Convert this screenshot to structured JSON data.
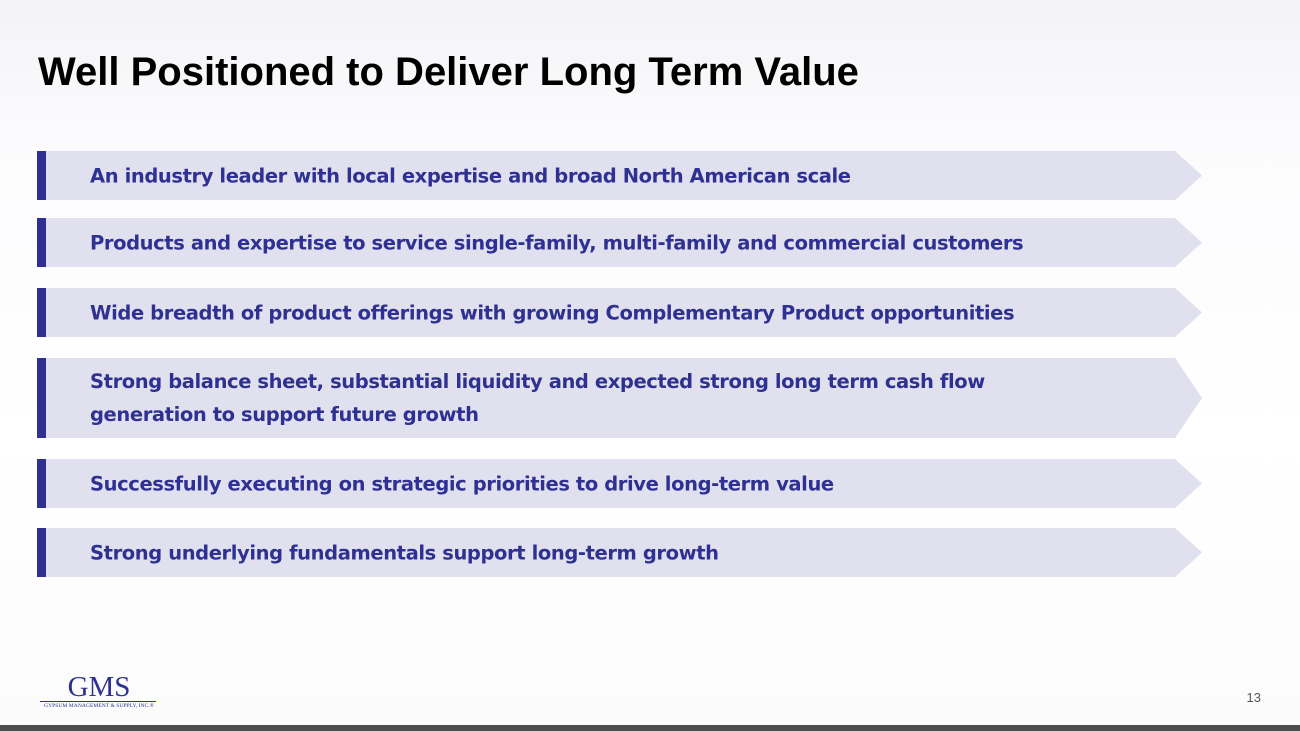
{
  "slide": {
    "title": "Well Positioned to Deliver Long Term Value",
    "page_number": "13"
  },
  "points": [
    "An industry leader with local expertise and broad North American scale",
    "Products and expertise to service single-family, multi-family and commercial customers",
    "Wide breadth of product offerings with growing Complementary Product opportunities",
    "Strong balance sheet, substantial liquidity and expected strong long term cash flow generation to support future growth",
    "Successfully executing on strategic priorities to drive long-term value",
    "Strong underlying fundamentals support long-term growth"
  ],
  "logo": {
    "mark": "GMS",
    "subtitle": "GYPSUM MANAGEMENT & SUPPLY, INC.®"
  },
  "colors": {
    "accent": "#2e3192",
    "point_background": "#e0e0ef",
    "title": "#000000",
    "footer_bar": "#4d4d4d"
  }
}
